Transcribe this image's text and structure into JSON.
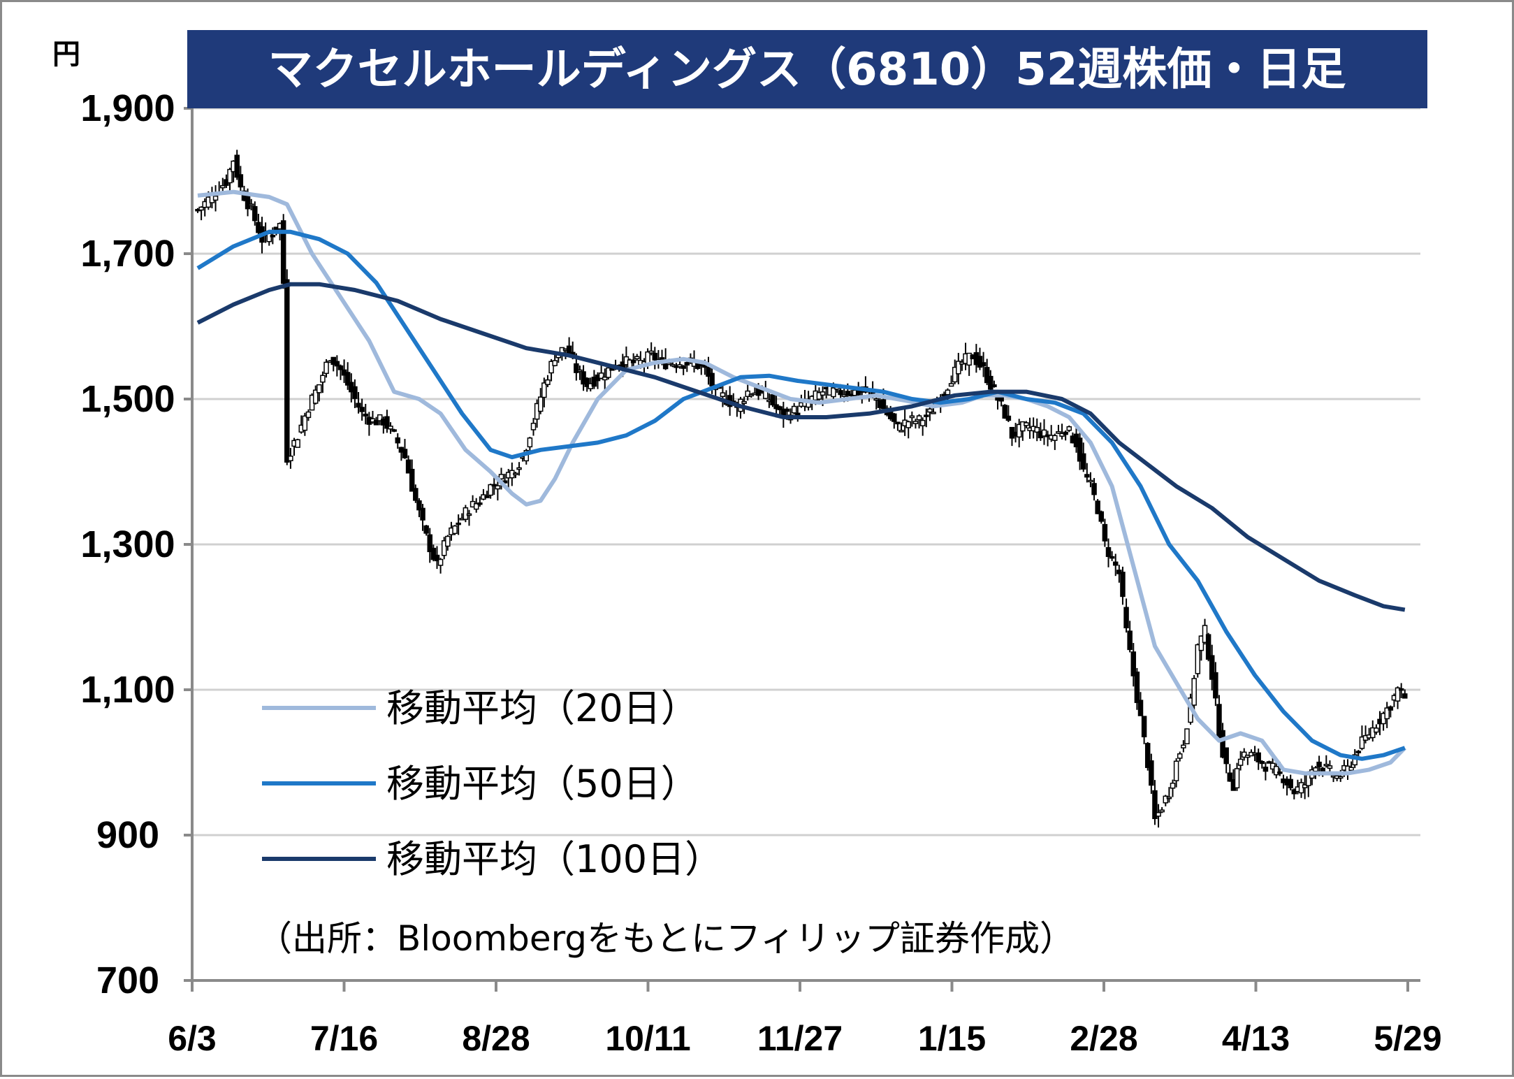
{
  "chart_data": {
    "type": "candlestick",
    "title": "マクセルホールディングス（6810）52週株価・日足",
    "unit_label": "円",
    "ylim": [
      700,
      1900
    ],
    "yticks": [
      700,
      900,
      1100,
      1300,
      1500,
      1700,
      1900
    ],
    "ytick_labels": [
      "700",
      "900",
      "1,100",
      "1,300",
      "1,500",
      "1,700",
      "1,900"
    ],
    "xtick_labels": [
      "6/3",
      "7/16",
      "8/28",
      "10/11",
      "11/27",
      "1/15",
      "2/28",
      "4/13",
      "5/29"
    ],
    "grid": true,
    "legend_placement": "bottom-left",
    "source": "（出所：Bloombergをもとにフィリップ証券作成）",
    "ohlc_close_path": [
      [
        0,
        1760
      ],
      [
        4,
        1780
      ],
      [
        8,
        1800
      ],
      [
        10,
        1830
      ],
      [
        12,
        1790
      ],
      [
        15,
        1760
      ],
      [
        18,
        1720
      ],
      [
        21,
        1730
      ],
      [
        23,
        1740
      ],
      [
        24,
        1660
      ],
      [
        25,
        1420
      ],
      [
        28,
        1450
      ],
      [
        31,
        1490
      ],
      [
        34,
        1520
      ],
      [
        37,
        1560
      ],
      [
        40,
        1540
      ],
      [
        43,
        1510
      ],
      [
        46,
        1480
      ],
      [
        49,
        1470
      ],
      [
        52,
        1470
      ],
      [
        55,
        1450
      ],
      [
        58,
        1420
      ],
      [
        61,
        1360
      ],
      [
        64,
        1310
      ],
      [
        67,
        1270
      ],
      [
        70,
        1310
      ],
      [
        73,
        1330
      ],
      [
        76,
        1350
      ],
      [
        79,
        1360
      ],
      [
        82,
        1380
      ],
      [
        85,
        1390
      ],
      [
        88,
        1400
      ],
      [
        91,
        1420
      ],
      [
        94,
        1470
      ],
      [
        97,
        1520
      ],
      [
        100,
        1560
      ],
      [
        103,
        1570
      ],
      [
        106,
        1540
      ],
      [
        109,
        1520
      ],
      [
        112,
        1530
      ],
      [
        115,
        1540
      ],
      [
        118,
        1550
      ],
      [
        121,
        1550
      ],
      [
        124,
        1550
      ],
      [
        127,
        1560
      ],
      [
        130,
        1550
      ],
      [
        133,
        1550
      ],
      [
        136,
        1550
      ],
      [
        139,
        1550
      ],
      [
        142,
        1540
      ],
      [
        145,
        1510
      ],
      [
        148,
        1500
      ],
      [
        151,
        1490
      ],
      [
        154,
        1510
      ],
      [
        157,
        1510
      ],
      [
        160,
        1500
      ],
      [
        163,
        1480
      ],
      [
        166,
        1480
      ],
      [
        169,
        1490
      ],
      [
        172,
        1500
      ],
      [
        175,
        1510
      ],
      [
        178,
        1510
      ],
      [
        181,
        1510
      ],
      [
        184,
        1510
      ],
      [
        187,
        1510
      ],
      [
        190,
        1500
      ],
      [
        193,
        1480
      ],
      [
        196,
        1460
      ],
      [
        199,
        1470
      ],
      [
        202,
        1470
      ],
      [
        205,
        1480
      ],
      [
        208,
        1500
      ],
      [
        211,
        1530
      ],
      [
        214,
        1550
      ],
      [
        217,
        1560
      ],
      [
        220,
        1540
      ],
      [
        222,
        1520
      ],
      [
        224,
        1500
      ],
      [
        226,
        1480
      ],
      [
        228,
        1450
      ],
      [
        231,
        1460
      ],
      [
        234,
        1460
      ],
      [
        237,
        1450
      ],
      [
        240,
        1450
      ],
      [
        243,
        1460
      ],
      [
        246,
        1440
      ],
      [
        248,
        1400
      ],
      [
        250,
        1380
      ],
      [
        252,
        1350
      ],
      [
        254,
        1300
      ],
      [
        256,
        1280
      ],
      [
        258,
        1260
      ],
      [
        260,
        1180
      ],
      [
        262,
        1120
      ],
      [
        264,
        1060
      ],
      [
        266,
        1000
      ],
      [
        268,
        920
      ],
      [
        270,
        940
      ],
      [
        272,
        960
      ],
      [
        274,
        1000
      ],
      [
        276,
        1030
      ],
      [
        278,
        1080
      ],
      [
        280,
        1160
      ],
      [
        282,
        1180
      ],
      [
        284,
        1120
      ],
      [
        286,
        1040
      ],
      [
        288,
        990
      ],
      [
        290,
        970
      ],
      [
        292,
        1010
      ],
      [
        295,
        1010
      ],
      [
        298,
        1000
      ],
      [
        301,
        990
      ],
      [
        304,
        980
      ],
      [
        307,
        960
      ],
      [
        310,
        970
      ],
      [
        313,
        1000
      ],
      [
        316,
        990
      ],
      [
        319,
        980
      ],
      [
        322,
        990
      ],
      [
        325,
        1020
      ],
      [
        328,
        1040
      ],
      [
        331,
        1060
      ],
      [
        334,
        1080
      ],
      [
        336,
        1100
      ],
      [
        338,
        1090
      ]
    ],
    "series": [
      {
        "name": "移動平均（20日）",
        "color": "#9fb9dc",
        "points": [
          [
            0,
            1780
          ],
          [
            10,
            1785
          ],
          [
            20,
            1778
          ],
          [
            25,
            1768
          ],
          [
            32,
            1700
          ],
          [
            40,
            1640
          ],
          [
            48,
            1580
          ],
          [
            55,
            1510
          ],
          [
            62,
            1500
          ],
          [
            68,
            1480
          ],
          [
            75,
            1430
          ],
          [
            82,
            1400
          ],
          [
            88,
            1370
          ],
          [
            92,
            1355
          ],
          [
            96,
            1360
          ],
          [
            100,
            1390
          ],
          [
            105,
            1440
          ],
          [
            112,
            1500
          ],
          [
            120,
            1540
          ],
          [
            128,
            1550
          ],
          [
            136,
            1555
          ],
          [
            142,
            1550
          ],
          [
            150,
            1530
          ],
          [
            158,
            1515
          ],
          [
            166,
            1500
          ],
          [
            174,
            1495
          ],
          [
            182,
            1500
          ],
          [
            190,
            1505
          ],
          [
            198,
            1498
          ],
          [
            206,
            1490
          ],
          [
            214,
            1495
          ],
          [
            220,
            1505
          ],
          [
            226,
            1505
          ],
          [
            232,
            1500
          ],
          [
            238,
            1490
          ],
          [
            244,
            1475
          ],
          [
            250,
            1440
          ],
          [
            256,
            1380
          ],
          [
            262,
            1270
          ],
          [
            268,
            1160
          ],
          [
            274,
            1110
          ],
          [
            280,
            1060
          ],
          [
            286,
            1030
          ],
          [
            292,
            1040
          ],
          [
            298,
            1030
          ],
          [
            304,
            990
          ],
          [
            310,
            985
          ],
          [
            316,
            985
          ],
          [
            322,
            985
          ],
          [
            328,
            990
          ],
          [
            334,
            1000
          ],
          [
            338,
            1020
          ]
        ]
      },
      {
        "name": "移動平均（50日）",
        "color": "#1f78c8",
        "points": [
          [
            0,
            1680
          ],
          [
            10,
            1710
          ],
          [
            20,
            1730
          ],
          [
            26,
            1730
          ],
          [
            34,
            1720
          ],
          [
            42,
            1700
          ],
          [
            50,
            1660
          ],
          [
            58,
            1600
          ],
          [
            66,
            1540
          ],
          [
            74,
            1480
          ],
          [
            82,
            1430
          ],
          [
            88,
            1420
          ],
          [
            96,
            1430
          ],
          [
            104,
            1435
          ],
          [
            112,
            1440
          ],
          [
            120,
            1450
          ],
          [
            128,
            1470
          ],
          [
            136,
            1500
          ],
          [
            144,
            1515
          ],
          [
            152,
            1530
          ],
          [
            160,
            1532
          ],
          [
            168,
            1525
          ],
          [
            176,
            1520
          ],
          [
            184,
            1515
          ],
          [
            192,
            1510
          ],
          [
            200,
            1500
          ],
          [
            208,
            1495
          ],
          [
            216,
            1500
          ],
          [
            224,
            1510
          ],
          [
            232,
            1500
          ],
          [
            240,
            1495
          ],
          [
            248,
            1480
          ],
          [
            256,
            1440
          ],
          [
            264,
            1380
          ],
          [
            272,
            1300
          ],
          [
            280,
            1250
          ],
          [
            288,
            1180
          ],
          [
            296,
            1120
          ],
          [
            304,
            1070
          ],
          [
            312,
            1030
          ],
          [
            320,
            1010
          ],
          [
            326,
            1005
          ],
          [
            332,
            1010
          ],
          [
            338,
            1020
          ]
        ]
      },
      {
        "name": "移動平均（100日）",
        "color": "#1a3a6b",
        "points": [
          [
            0,
            1605
          ],
          [
            10,
            1630
          ],
          [
            20,
            1650
          ],
          [
            26,
            1658
          ],
          [
            34,
            1658
          ],
          [
            44,
            1650
          ],
          [
            56,
            1635
          ],
          [
            68,
            1610
          ],
          [
            80,
            1590
          ],
          [
            92,
            1570
          ],
          [
            104,
            1560
          ],
          [
            116,
            1545
          ],
          [
            128,
            1530
          ],
          [
            140,
            1510
          ],
          [
            152,
            1490
          ],
          [
            164,
            1475
          ],
          [
            176,
            1475
          ],
          [
            188,
            1480
          ],
          [
            200,
            1490
          ],
          [
            212,
            1505
          ],
          [
            222,
            1510
          ],
          [
            232,
            1510
          ],
          [
            242,
            1500
          ],
          [
            250,
            1480
          ],
          [
            258,
            1440
          ],
          [
            266,
            1410
          ],
          [
            274,
            1380
          ],
          [
            284,
            1350
          ],
          [
            294,
            1310
          ],
          [
            304,
            1280
          ],
          [
            314,
            1250
          ],
          [
            324,
            1230
          ],
          [
            332,
            1215
          ],
          [
            338,
            1210
          ]
        ]
      }
    ]
  }
}
